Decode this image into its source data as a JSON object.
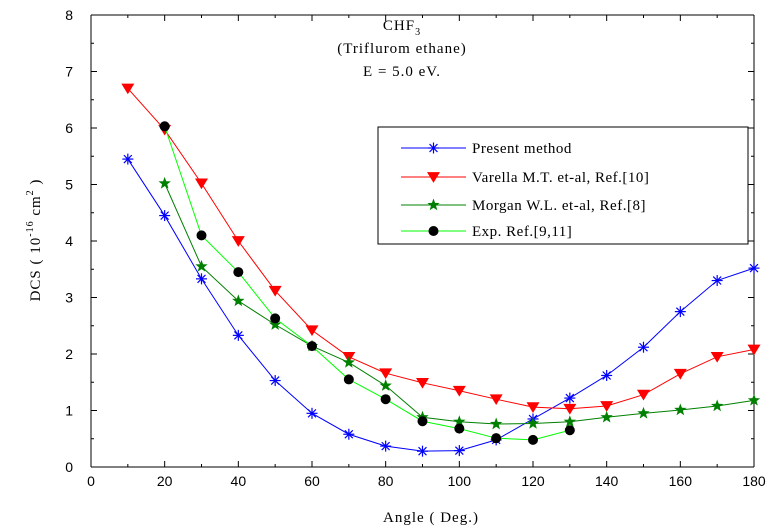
{
  "chart_data": {
    "type": "line",
    "title": {
      "formula_base": "CHF",
      "formula_sub": "3",
      "name": "(Triflurom ethane)",
      "energy": "E = 5.0 eV."
    },
    "xlabel": "Angle ( Deg.)",
    "ylabel": {
      "prefix": "DCS ( 10",
      "exp1": "-16",
      "mid": " cm",
      "exp2": "2",
      "suffix": " )"
    },
    "xlim": [
      0,
      180
    ],
    "ylim": [
      0,
      8
    ],
    "xticks": [
      0,
      20,
      40,
      60,
      80,
      100,
      120,
      140,
      160,
      180
    ],
    "yticks": [
      0,
      1,
      2,
      3,
      4,
      5,
      6,
      7,
      8
    ],
    "grid": false,
    "legend_position": "top-right",
    "series": [
      {
        "name": "Present method",
        "color": "#0000ff",
        "marker": "asterisk",
        "x": [
          10,
          20,
          30,
          40,
          50,
          60,
          70,
          80,
          90,
          100,
          110,
          120,
          130,
          140,
          150,
          160,
          170,
          180
        ],
        "y": [
          5.45,
          4.45,
          3.33,
          2.33,
          1.53,
          0.95,
          0.58,
          0.37,
          0.28,
          0.29,
          0.48,
          0.85,
          1.22,
          1.62,
          2.12,
          2.75,
          3.3,
          3.52
        ]
      },
      {
        "name": "Varella M.T. et-al, Ref.[10]",
        "color": "#ff0000",
        "marker": "triangle-down",
        "x": [
          10,
          20,
          30,
          40,
          50,
          60,
          70,
          80,
          90,
          100,
          110,
          120,
          130,
          140,
          150,
          160,
          170,
          180
        ],
        "y": [
          6.7,
          5.97,
          5.02,
          4.0,
          3.12,
          2.42,
          1.95,
          1.66,
          1.49,
          1.35,
          1.2,
          1.06,
          1.03,
          1.08,
          1.28,
          1.65,
          1.95,
          2.08
        ]
      },
      {
        "name": "Morgan W.L. et-al, Ref.[8]",
        "color": "#008000",
        "marker": "star",
        "x": [
          20,
          30,
          40,
          50,
          60,
          70,
          80,
          90,
          100,
          110,
          120,
          130,
          140,
          150,
          160,
          170,
          180
        ],
        "y": [
          5.02,
          3.55,
          2.94,
          2.52,
          2.14,
          1.85,
          1.44,
          0.88,
          0.8,
          0.76,
          0.77,
          0.8,
          0.88,
          0.95,
          1.01,
          1.08,
          1.18
        ]
      },
      {
        "name": "Exp. Ref.[9,11]",
        "color": "#00ff00",
        "marker": "circle",
        "x": [
          20,
          30,
          40,
          50,
          60,
          70,
          80,
          90,
          100,
          110,
          120,
          130
        ],
        "y": [
          6.03,
          4.1,
          3.45,
          2.63,
          2.14,
          1.55,
          1.2,
          0.81,
          0.68,
          0.51,
          0.48,
          0.65
        ]
      }
    ]
  }
}
